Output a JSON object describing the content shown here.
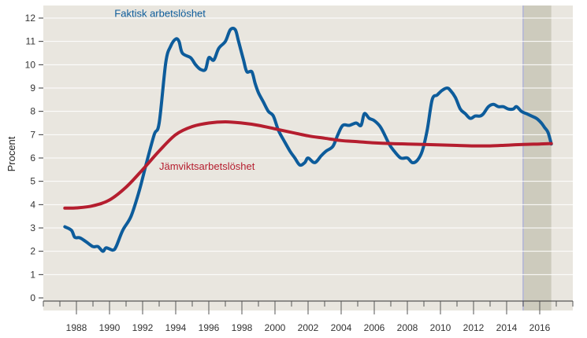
{
  "chart_data": {
    "type": "line",
    "ylabel": "Procent",
    "xlabel": "",
    "title": "",
    "ylim": [
      0,
      12
    ],
    "xlim": [
      1986.0,
      2018.0
    ],
    "y_ticks": [
      0,
      1,
      2,
      3,
      4,
      5,
      6,
      7,
      8,
      9,
      10,
      11,
      12
    ],
    "x_ticks": [
      1988,
      1990,
      1992,
      1994,
      1996,
      1998,
      2000,
      2002,
      2004,
      2006,
      2008,
      2010,
      2012,
      2014,
      2016
    ],
    "grid": true,
    "shaded_period": {
      "start": 2015.0,
      "end": 2016.7,
      "meaning": "forecast"
    },
    "colors": {
      "plot_background": "#e9e6df",
      "grid": "#ffffff",
      "shade": "#cdcbbd",
      "shade_edge": "#b9bbd4"
    },
    "series": [
      {
        "name": "Faktisk arbetslöshet",
        "color": "#0d5c9b",
        "points": [
          [
            1987.3,
            3.05
          ],
          [
            1987.7,
            2.9
          ],
          [
            1987.9,
            2.6
          ],
          [
            1988.2,
            2.58
          ],
          [
            1988.6,
            2.4
          ],
          [
            1989.0,
            2.2
          ],
          [
            1989.3,
            2.2
          ],
          [
            1989.6,
            2.0
          ],
          [
            1989.8,
            2.15
          ],
          [
            1990.2,
            2.05
          ],
          [
            1990.4,
            2.2
          ],
          [
            1990.8,
            2.9
          ],
          [
            1991.3,
            3.5
          ],
          [
            1991.8,
            4.6
          ],
          [
            1992.2,
            5.7
          ],
          [
            1992.7,
            7.0
          ],
          [
            1993.0,
            7.5
          ],
          [
            1993.4,
            10.1
          ],
          [
            1993.7,
            10.8
          ],
          [
            1994.0,
            11.1
          ],
          [
            1994.2,
            11.0
          ],
          [
            1994.4,
            10.5
          ],
          [
            1994.9,
            10.3
          ],
          [
            1995.2,
            10.0
          ],
          [
            1995.5,
            9.8
          ],
          [
            1995.8,
            9.8
          ],
          [
            1996.0,
            10.3
          ],
          [
            1996.3,
            10.2
          ],
          [
            1996.6,
            10.7
          ],
          [
            1997.0,
            11.0
          ],
          [
            1997.3,
            11.5
          ],
          [
            1997.6,
            11.5
          ],
          [
            1997.8,
            11.0
          ],
          [
            1998.1,
            10.2
          ],
          [
            1998.3,
            9.7
          ],
          [
            1998.6,
            9.7
          ],
          [
            1998.8,
            9.2
          ],
          [
            1999.0,
            8.8
          ],
          [
            1999.3,
            8.4
          ],
          [
            1999.6,
            8.0
          ],
          [
            1999.9,
            7.8
          ],
          [
            2000.2,
            7.2
          ],
          [
            2000.5,
            6.8
          ],
          [
            2000.9,
            6.3
          ],
          [
            2001.2,
            6.0
          ],
          [
            2001.5,
            5.7
          ],
          [
            2001.8,
            5.8
          ],
          [
            2002.0,
            6.0
          ],
          [
            2002.4,
            5.8
          ],
          [
            2002.8,
            6.1
          ],
          [
            2003.1,
            6.3
          ],
          [
            2003.5,
            6.5
          ],
          [
            2003.8,
            7.0
          ],
          [
            2004.1,
            7.4
          ],
          [
            2004.5,
            7.4
          ],
          [
            2004.9,
            7.5
          ],
          [
            2005.2,
            7.4
          ],
          [
            2005.4,
            7.9
          ],
          [
            2005.7,
            7.7
          ],
          [
            2006.0,
            7.6
          ],
          [
            2006.4,
            7.3
          ],
          [
            2006.9,
            6.6
          ],
          [
            2007.2,
            6.3
          ],
          [
            2007.6,
            6.0
          ],
          [
            2008.0,
            6.0
          ],
          [
            2008.3,
            5.8
          ],
          [
            2008.6,
            5.9
          ],
          [
            2008.9,
            6.3
          ],
          [
            2009.2,
            7.2
          ],
          [
            2009.5,
            8.5
          ],
          [
            2009.8,
            8.7
          ],
          [
            2010.1,
            8.9
          ],
          [
            2010.4,
            9.0
          ],
          [
            2010.6,
            8.9
          ],
          [
            2010.9,
            8.6
          ],
          [
            2011.2,
            8.1
          ],
          [
            2011.5,
            7.9
          ],
          [
            2011.8,
            7.7
          ],
          [
            2012.1,
            7.8
          ],
          [
            2012.4,
            7.8
          ],
          [
            2012.6,
            7.9
          ],
          [
            2012.9,
            8.2
          ],
          [
            2013.2,
            8.3
          ],
          [
            2013.5,
            8.2
          ],
          [
            2013.8,
            8.2
          ],
          [
            2014.1,
            8.1
          ],
          [
            2014.4,
            8.1
          ],
          [
            2014.6,
            8.2
          ],
          [
            2014.9,
            8.0
          ],
          [
            2015.2,
            7.9
          ],
          [
            2015.5,
            7.8
          ],
          [
            2015.8,
            7.7
          ],
          [
            2016.1,
            7.5
          ],
          [
            2016.3,
            7.3
          ],
          [
            2016.5,
            7.1
          ],
          [
            2016.7,
            6.6
          ]
        ]
      },
      {
        "name": "Jämviktsarbetslöshet",
        "color": "#b51e2f",
        "points": [
          [
            1987.3,
            3.85
          ],
          [
            1988.0,
            3.86
          ],
          [
            1989.0,
            3.95
          ],
          [
            1990.0,
            4.2
          ],
          [
            1991.0,
            4.75
          ],
          [
            1992.0,
            5.5
          ],
          [
            1993.0,
            6.3
          ],
          [
            1994.0,
            7.0
          ],
          [
            1995.0,
            7.35
          ],
          [
            1996.0,
            7.5
          ],
          [
            1997.0,
            7.55
          ],
          [
            1998.0,
            7.5
          ],
          [
            1999.0,
            7.4
          ],
          [
            2000.0,
            7.25
          ],
          [
            2001.0,
            7.1
          ],
          [
            2002.0,
            6.95
          ],
          [
            2003.0,
            6.85
          ],
          [
            2004.0,
            6.75
          ],
          [
            2005.0,
            6.7
          ],
          [
            2006.0,
            6.65
          ],
          [
            2007.0,
            6.62
          ],
          [
            2008.0,
            6.6
          ],
          [
            2009.0,
            6.58
          ],
          [
            2010.0,
            6.56
          ],
          [
            2011.0,
            6.54
          ],
          [
            2012.0,
            6.52
          ],
          [
            2013.0,
            6.52
          ],
          [
            2014.0,
            6.55
          ],
          [
            2015.0,
            6.58
          ],
          [
            2016.0,
            6.6
          ],
          [
            2016.7,
            6.62
          ]
        ]
      }
    ],
    "annotations": [
      {
        "text": "Faktisk arbetslöshet",
        "series": 0,
        "at": [
          1990.3,
          12.05
        ]
      },
      {
        "text": "Jämviktsarbetslöshet",
        "series": 1,
        "at": [
          1993.0,
          5.5
        ]
      }
    ]
  }
}
